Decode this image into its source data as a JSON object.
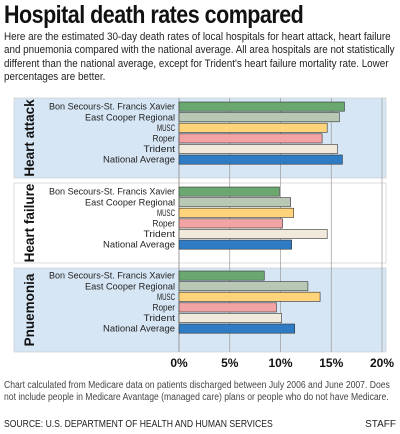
{
  "header": {
    "title": "Hospital death rates compared",
    "subtitle": "Here are the estimated 30-day death rates of local hospitals for heart attack, heart failure and pnuemonia compared with the national average. All area hospitals are not statistically different than the national average, except for Trident's heart failure mortality rate. Lower percentages are better."
  },
  "footer": {
    "note": "Chart calculated from Medicare data on patients discharged between July 2006 and June 2007. Does not include people in Medicare Avantage (managed care) plans or people who do not have Medicare.",
    "source": "SOURCE: U.S. DEPARTMENT OF HEALTH AND HUMAN SERVICES",
    "credit": "STAFF"
  },
  "colors": {
    "panel_blue": "#d6e6f4",
    "panel_white": "#ffffff",
    "grid": "#9a9a9a",
    "bar_stroke": "#333333"
  },
  "chart_data": {
    "type": "bar",
    "orientation": "horizontal",
    "categories": [
      "Bon Secours-St. Francis Xavier",
      "East Cooper Regional",
      "MUSC",
      "Roper",
      "Trident",
      "National Average"
    ],
    "category_colors": [
      "#6aa870",
      "#b8c8b4",
      "#ffd37a",
      "#f2a3a3",
      "#f1e9dc",
      "#2f7cc4"
    ],
    "groups": [
      {
        "name": "Heart attack",
        "values": [
          16.3,
          15.8,
          14.6,
          14.1,
          15.6,
          16.1
        ]
      },
      {
        "name": "Heart failure",
        "values": [
          9.9,
          11.0,
          11.3,
          10.2,
          14.6,
          11.1
        ]
      },
      {
        "name": "Pnuemonia",
        "values": [
          8.4,
          12.7,
          13.9,
          9.6,
          10.1,
          11.4
        ]
      }
    ],
    "xlim": [
      0,
      20
    ],
    "xticks": [
      "0%",
      "5%",
      "10%",
      "15%",
      "20%"
    ],
    "xtick_values": [
      0,
      5,
      10,
      15,
      20
    ],
    "xlabel": "",
    "ylabel": "",
    "grid": true
  }
}
